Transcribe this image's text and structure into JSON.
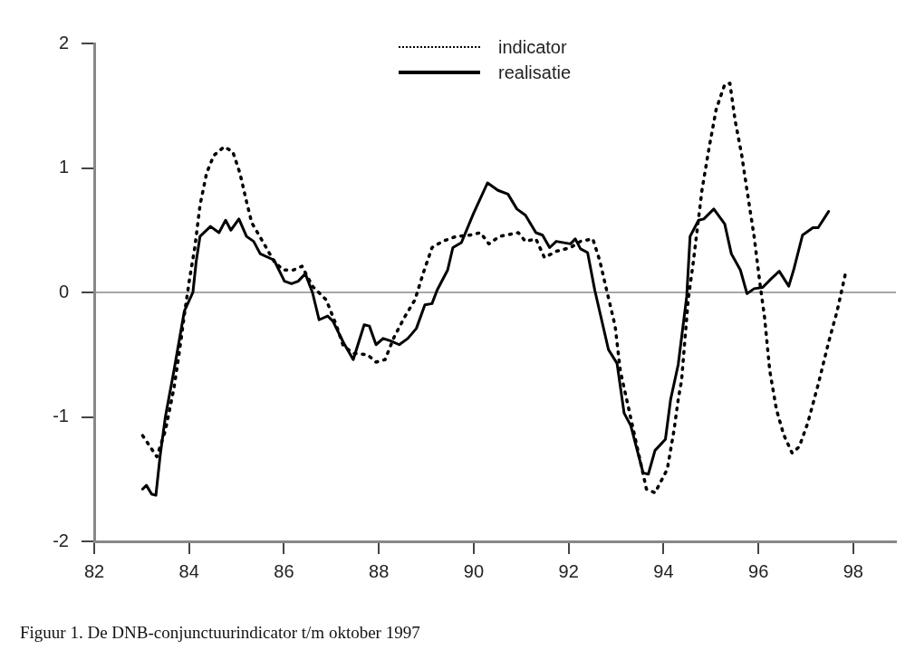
{
  "chart_data": {
    "type": "line",
    "xlim": [
      82,
      98.9
    ],
    "xticks": [
      82,
      84,
      86,
      88,
      90,
      92,
      94,
      96,
      98
    ],
    "ylim": [
      -2,
      2
    ],
    "yticks": [
      -2,
      -1,
      0,
      1,
      2
    ],
    "legend": "top",
    "marker": "none",
    "ref_lines": [
      {
        "axis": "y",
        "value": 0,
        "color": "#888888"
      }
    ],
    "annotations": [
      "Figuur 1. De DNB-conjunctuurindicator t/m oktober 1997"
    ],
    "series": [
      {
        "name": "indicator",
        "color": "#000000",
        "line_style": "dotted",
        "x": [
          83.02,
          83.32,
          83.5,
          83.68,
          83.79,
          83.9,
          84.01,
          84.12,
          84.23,
          84.37,
          84.52,
          84.74,
          84.92,
          85.07,
          85.21,
          85.32,
          85.58,
          85.79,
          85.98,
          86.2,
          86.38,
          86.6,
          86.89,
          87.1,
          87.25,
          87.47,
          87.76,
          87.94,
          88.13,
          88.32,
          88.54,
          88.76,
          88.94,
          89.12,
          89.34,
          89.63,
          89.92,
          90.14,
          90.32,
          90.54,
          90.94,
          91.09,
          91.31,
          91.49,
          91.74,
          92.04,
          92.25,
          92.51,
          92.66,
          92.8,
          92.98,
          93.09,
          93.27,
          93.42,
          93.64,
          93.82,
          94.08,
          94.22,
          94.31,
          94.38,
          94.52,
          94.63,
          94.81,
          94.96,
          95.11,
          95.29,
          95.4,
          95.51,
          95.65,
          95.76,
          95.91,
          96.03,
          96.13,
          96.24,
          96.38,
          96.53,
          96.71,
          96.86,
          97.04,
          97.26,
          97.48,
          97.66,
          97.84
        ],
        "values": [
          -1.15,
          -1.32,
          -1.11,
          -0.77,
          -0.49,
          -0.18,
          0.11,
          0.36,
          0.7,
          0.96,
          1.1,
          1.17,
          1.13,
          0.96,
          0.73,
          0.56,
          0.39,
          0.25,
          0.18,
          0.18,
          0.21,
          0.05,
          -0.06,
          -0.26,
          -0.43,
          -0.49,
          -0.5,
          -0.56,
          -0.54,
          -0.36,
          -0.2,
          -0.06,
          0.16,
          0.36,
          0.41,
          0.45,
          0.46,
          0.48,
          0.39,
          0.45,
          0.48,
          0.41,
          0.43,
          0.28,
          0.33,
          0.36,
          0.41,
          0.43,
          0.25,
          0.02,
          -0.27,
          -0.63,
          -0.94,
          -1.2,
          -1.58,
          -1.61,
          -1.42,
          -1.11,
          -0.86,
          -0.71,
          -0.06,
          0.25,
          0.82,
          1.16,
          1.47,
          1.67,
          1.68,
          1.38,
          1.1,
          0.82,
          0.45,
          0.08,
          -0.2,
          -0.63,
          -0.94,
          -1.14,
          -1.29,
          -1.24,
          -1.05,
          -0.74,
          -0.4,
          -0.15,
          0.16
        ]
      },
      {
        "name": "realisatie",
        "color": "#000000",
        "line_style": "solid",
        "x": [
          83.02,
          83.1,
          83.21,
          83.3,
          83.39,
          83.5,
          83.68,
          83.9,
          84.08,
          84.15,
          84.23,
          84.45,
          84.63,
          84.77,
          84.88,
          85.05,
          85.21,
          85.36,
          85.5,
          85.79,
          86.01,
          86.16,
          86.3,
          86.45,
          86.6,
          86.74,
          86.92,
          87.03,
          87.25,
          87.46,
          87.69,
          87.8,
          87.94,
          88.09,
          88.25,
          88.43,
          88.61,
          88.79,
          88.97,
          89.12,
          89.23,
          89.45,
          89.56,
          89.74,
          89.99,
          90.29,
          90.51,
          90.72,
          90.91,
          91.09,
          91.31,
          91.45,
          91.6,
          91.74,
          92.04,
          92.14,
          92.25,
          92.4,
          92.55,
          92.84,
          93.02,
          93.17,
          93.31,
          93.57,
          93.68,
          93.82,
          94.04,
          94.15,
          94.31,
          94.49,
          94.56,
          94.74,
          94.85,
          95.06,
          95.29,
          95.43,
          95.62,
          95.76,
          95.91,
          96.09,
          96.27,
          96.44,
          96.64,
          96.75,
          96.93,
          97.15,
          97.26,
          97.48
        ],
        "values": [
          -1.58,
          -1.55,
          -1.62,
          -1.63,
          -1.31,
          -1.0,
          -0.63,
          -0.15,
          0,
          0.25,
          0.45,
          0.53,
          0.48,
          0.58,
          0.5,
          0.59,
          0.45,
          0.41,
          0.31,
          0.26,
          0.09,
          0.07,
          0.09,
          0.15,
          0,
          -0.22,
          -0.19,
          -0.23,
          -0.4,
          -0.54,
          -0.26,
          -0.27,
          -0.42,
          -0.37,
          -0.39,
          -0.42,
          -0.37,
          -0.29,
          -0.1,
          -0.09,
          0.02,
          0.18,
          0.36,
          0.4,
          0.63,
          0.88,
          0.82,
          0.79,
          0.67,
          0.62,
          0.48,
          0.46,
          0.36,
          0.41,
          0.39,
          0.43,
          0.35,
          0.32,
          0.02,
          -0.46,
          -0.57,
          -0.97,
          -1.07,
          -1.45,
          -1.46,
          -1.27,
          -1.18,
          -0.86,
          -0.58,
          -0.03,
          0.45,
          0.58,
          0.59,
          0.67,
          0.55,
          0.31,
          0.18,
          -0.01,
          0.03,
          0.04,
          0.11,
          0.17,
          0.05,
          0.19,
          0.46,
          0.52,
          0.52,
          0.65
        ]
      }
    ]
  }
}
